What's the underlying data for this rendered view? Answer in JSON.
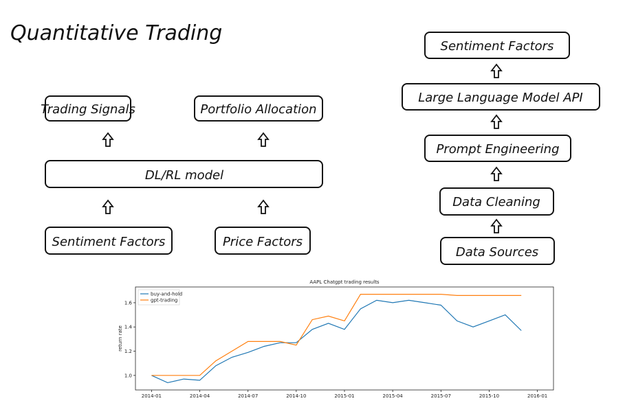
{
  "title": "Quantitative Trading",
  "left_diagram": {
    "nodes": [
      {
        "label": "Trading Signals"
      },
      {
        "label": "Portfolio Allocation"
      },
      {
        "label": "DL/RL model"
      },
      {
        "label": "Sentiment Factors"
      },
      {
        "label": "Price Factors"
      }
    ]
  },
  "right_diagram": {
    "nodes": [
      {
        "label": "Sentiment Factors"
      },
      {
        "label": "Large Language Model API"
      },
      {
        "label": "Prompt Engineering"
      },
      {
        "label": "Data Cleaning"
      },
      {
        "label": "Data Sources"
      }
    ]
  },
  "chart_data": {
    "type": "line",
    "title": "AAPL Chatgpt trading results",
    "y_label": "return rate",
    "x": [
      "2014-01",
      "2014-02",
      "2014-03",
      "2014-04",
      "2014-05",
      "2014-06",
      "2014-07",
      "2014-08",
      "2014-09",
      "2014-10",
      "2014-11",
      "2014-12",
      "2015-01",
      "2015-02",
      "2015-03",
      "2015-04",
      "2015-05",
      "2015-06",
      "2015-07",
      "2015-08",
      "2015-09",
      "2015-10",
      "2015-11",
      "2015-12"
    ],
    "series": [
      {
        "name": "buy-and-hold",
        "color": "#1f77b4",
        "values": [
          1.0,
          0.94,
          0.97,
          0.96,
          1.08,
          1.15,
          1.19,
          1.24,
          1.27,
          1.27,
          1.38,
          1.43,
          1.38,
          1.55,
          1.62,
          1.6,
          1.62,
          1.6,
          1.58,
          1.45,
          1.4,
          1.45,
          1.5,
          1.37
        ]
      },
      {
        "name": "gpt-trading",
        "color": "#ff7f0e",
        "values": [
          1.0,
          1.0,
          1.0,
          1.0,
          1.12,
          1.2,
          1.28,
          1.28,
          1.28,
          1.25,
          1.46,
          1.49,
          1.45,
          1.67,
          1.67,
          1.67,
          1.67,
          1.67,
          1.67,
          1.66,
          1.66,
          1.66,
          1.66,
          1.66
        ]
      }
    ],
    "xlim": [
      "2013-12",
      "2016-02"
    ],
    "xticks": [
      "2014-01",
      "2014-04",
      "2014-07",
      "2014-10",
      "2015-01",
      "2015-04",
      "2015-07",
      "2015-10",
      "2016-01"
    ],
    "ylim": [
      0.88,
      1.73
    ],
    "yticks": [
      {
        "value": 1,
        "label": "1.0"
      },
      1.2,
      1.4,
      1.6
    ],
    "legend": "upper left"
  }
}
